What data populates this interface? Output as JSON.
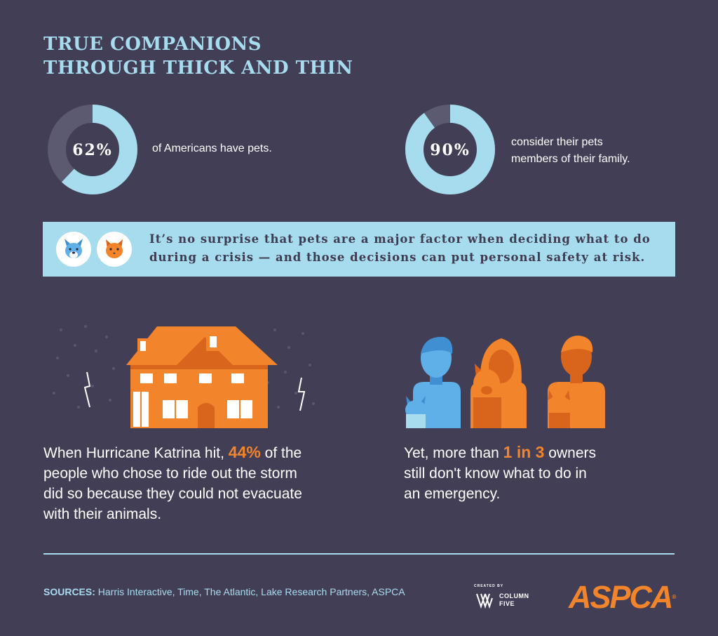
{
  "title": {
    "line1": "TRUE COMPANIONS",
    "line2": "THROUGH THICK AND THIN"
  },
  "stats": [
    {
      "percent": "62%",
      "fraction": 0.62,
      "text_line1": "of Americans have pets.",
      "text_line2": ""
    },
    {
      "percent": "90%",
      "fraction": 0.9,
      "text_line1": "consider their pets",
      "text_line2": "members of their family."
    }
  ],
  "banner": {
    "line1": "It’s no surprise that pets are a major factor when deciding what to do",
    "line2": "during a crisis — and those decisions can put personal safety at risk.",
    "icons": [
      "dog-face-icon",
      "cat-face-icon"
    ]
  },
  "katrina": {
    "icon": "house-in-storm-icon",
    "pre": "When Hurricane Katrina hit, ",
    "highlight": "44%",
    "line1_post": " of the",
    "line2": "people who chose to ride out the storm",
    "line3": "did so because they could not evacuate",
    "line4": "with their animals."
  },
  "owners": {
    "icon": "pet-owners-icon",
    "pre": "Yet, more than ",
    "highlight": "1 in 3",
    "line1_post": " owners",
    "line2": "still don't know what to do in",
    "line3": "an emergency."
  },
  "footer": {
    "sources_label": "SOURCES:",
    "sources_text": " Harris Interactive, Time, The Atlantic, Lake Research Partners, ASPCA",
    "created_by": "CREATED BY",
    "column": "COLUMN",
    "five": "FIVE",
    "aspca": "ASPCA",
    "registered": "®"
  },
  "colors": {
    "background": "#423e55",
    "accent_blue": "#a7dcee",
    "accent_orange": "#f2842b",
    "donut_track": "#5c5a70"
  }
}
